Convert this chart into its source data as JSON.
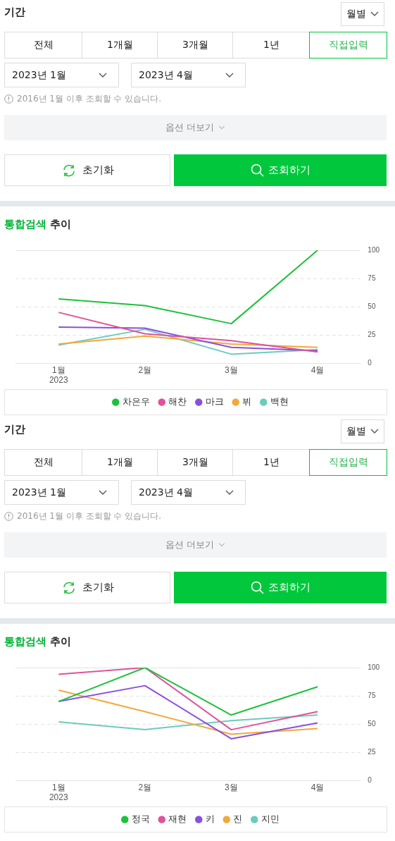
{
  "chart_data": [
    {
      "type": "other",
      "title": "기간",
      "annotations": [
        "월별",
        "전체",
        "1개월",
        "3개월",
        "1년",
        "직접입력",
        "2023년 1월",
        "2023년 4월",
        "2016년 1월 이후 조회할 수 있습니다.",
        "옵션 더보기",
        "초기화",
        "조회하기"
      ]
    },
    {
      "type": "line",
      "title": "통합검색 추이",
      "categories": [
        "1월\n2023",
        "2월",
        "3월",
        "4월"
      ],
      "ylim": [
        0,
        100
      ],
      "yticks": [
        0,
        25,
        50,
        75,
        100
      ],
      "grid": "y",
      "legend": "bottom",
      "marker": "none",
      "line_style": "solid",
      "series": [
        {
          "name": "차은우",
          "color": "#1ec13c",
          "values": [
            57,
            51,
            35,
            100
          ]
        },
        {
          "name": "해찬",
          "color": "#e0529a",
          "values": [
            45,
            26,
            20,
            10
          ]
        },
        {
          "name": "마크",
          "color": "#8a4fe0",
          "values": [
            32,
            31,
            14,
            11
          ]
        },
        {
          "name": "뷔",
          "color": "#f2a93b",
          "values": [
            17,
            24,
            17,
            14
          ]
        },
        {
          "name": "백현",
          "color": "#6ccbbd",
          "values": [
            16,
            30,
            8,
            12
          ]
        }
      ]
    },
    {
      "type": "other",
      "title": "기간",
      "annotations": [
        "월별",
        "전체",
        "1개월",
        "3개월",
        "1년",
        "직접입력",
        "2023년 1월",
        "2023년 4월",
        "2016년 1월 이후 조회할 수 있습니다.",
        "옵션 더보기",
        "초기화",
        "조회하기"
      ]
    },
    {
      "type": "line",
      "title": "통합검색 추이",
      "categories": [
        "1월\n2023",
        "2월",
        "3월",
        "4월"
      ],
      "ylim": [
        0,
        100
      ],
      "yticks": [
        0,
        25,
        50,
        75,
        100
      ],
      "grid": "y",
      "legend": "bottom",
      "marker": "none",
      "line_style": "solid",
      "series": [
        {
          "name": "정국",
          "color": "#1ec13c",
          "values": [
            70,
            100,
            58,
            83
          ]
        },
        {
          "name": "재현",
          "color": "#e0529a",
          "values": [
            94,
            100,
            45,
            61
          ]
        },
        {
          "name": "키",
          "color": "#8a4fe0",
          "values": [
            70,
            84,
            37,
            51
          ]
        },
        {
          "name": "진",
          "color": "#f2a93b",
          "values": [
            80,
            61,
            41,
            46
          ]
        },
        {
          "name": "지민",
          "color": "#6ccbbd",
          "values": [
            52,
            45,
            53,
            58
          ]
        }
      ]
    }
  ]
}
